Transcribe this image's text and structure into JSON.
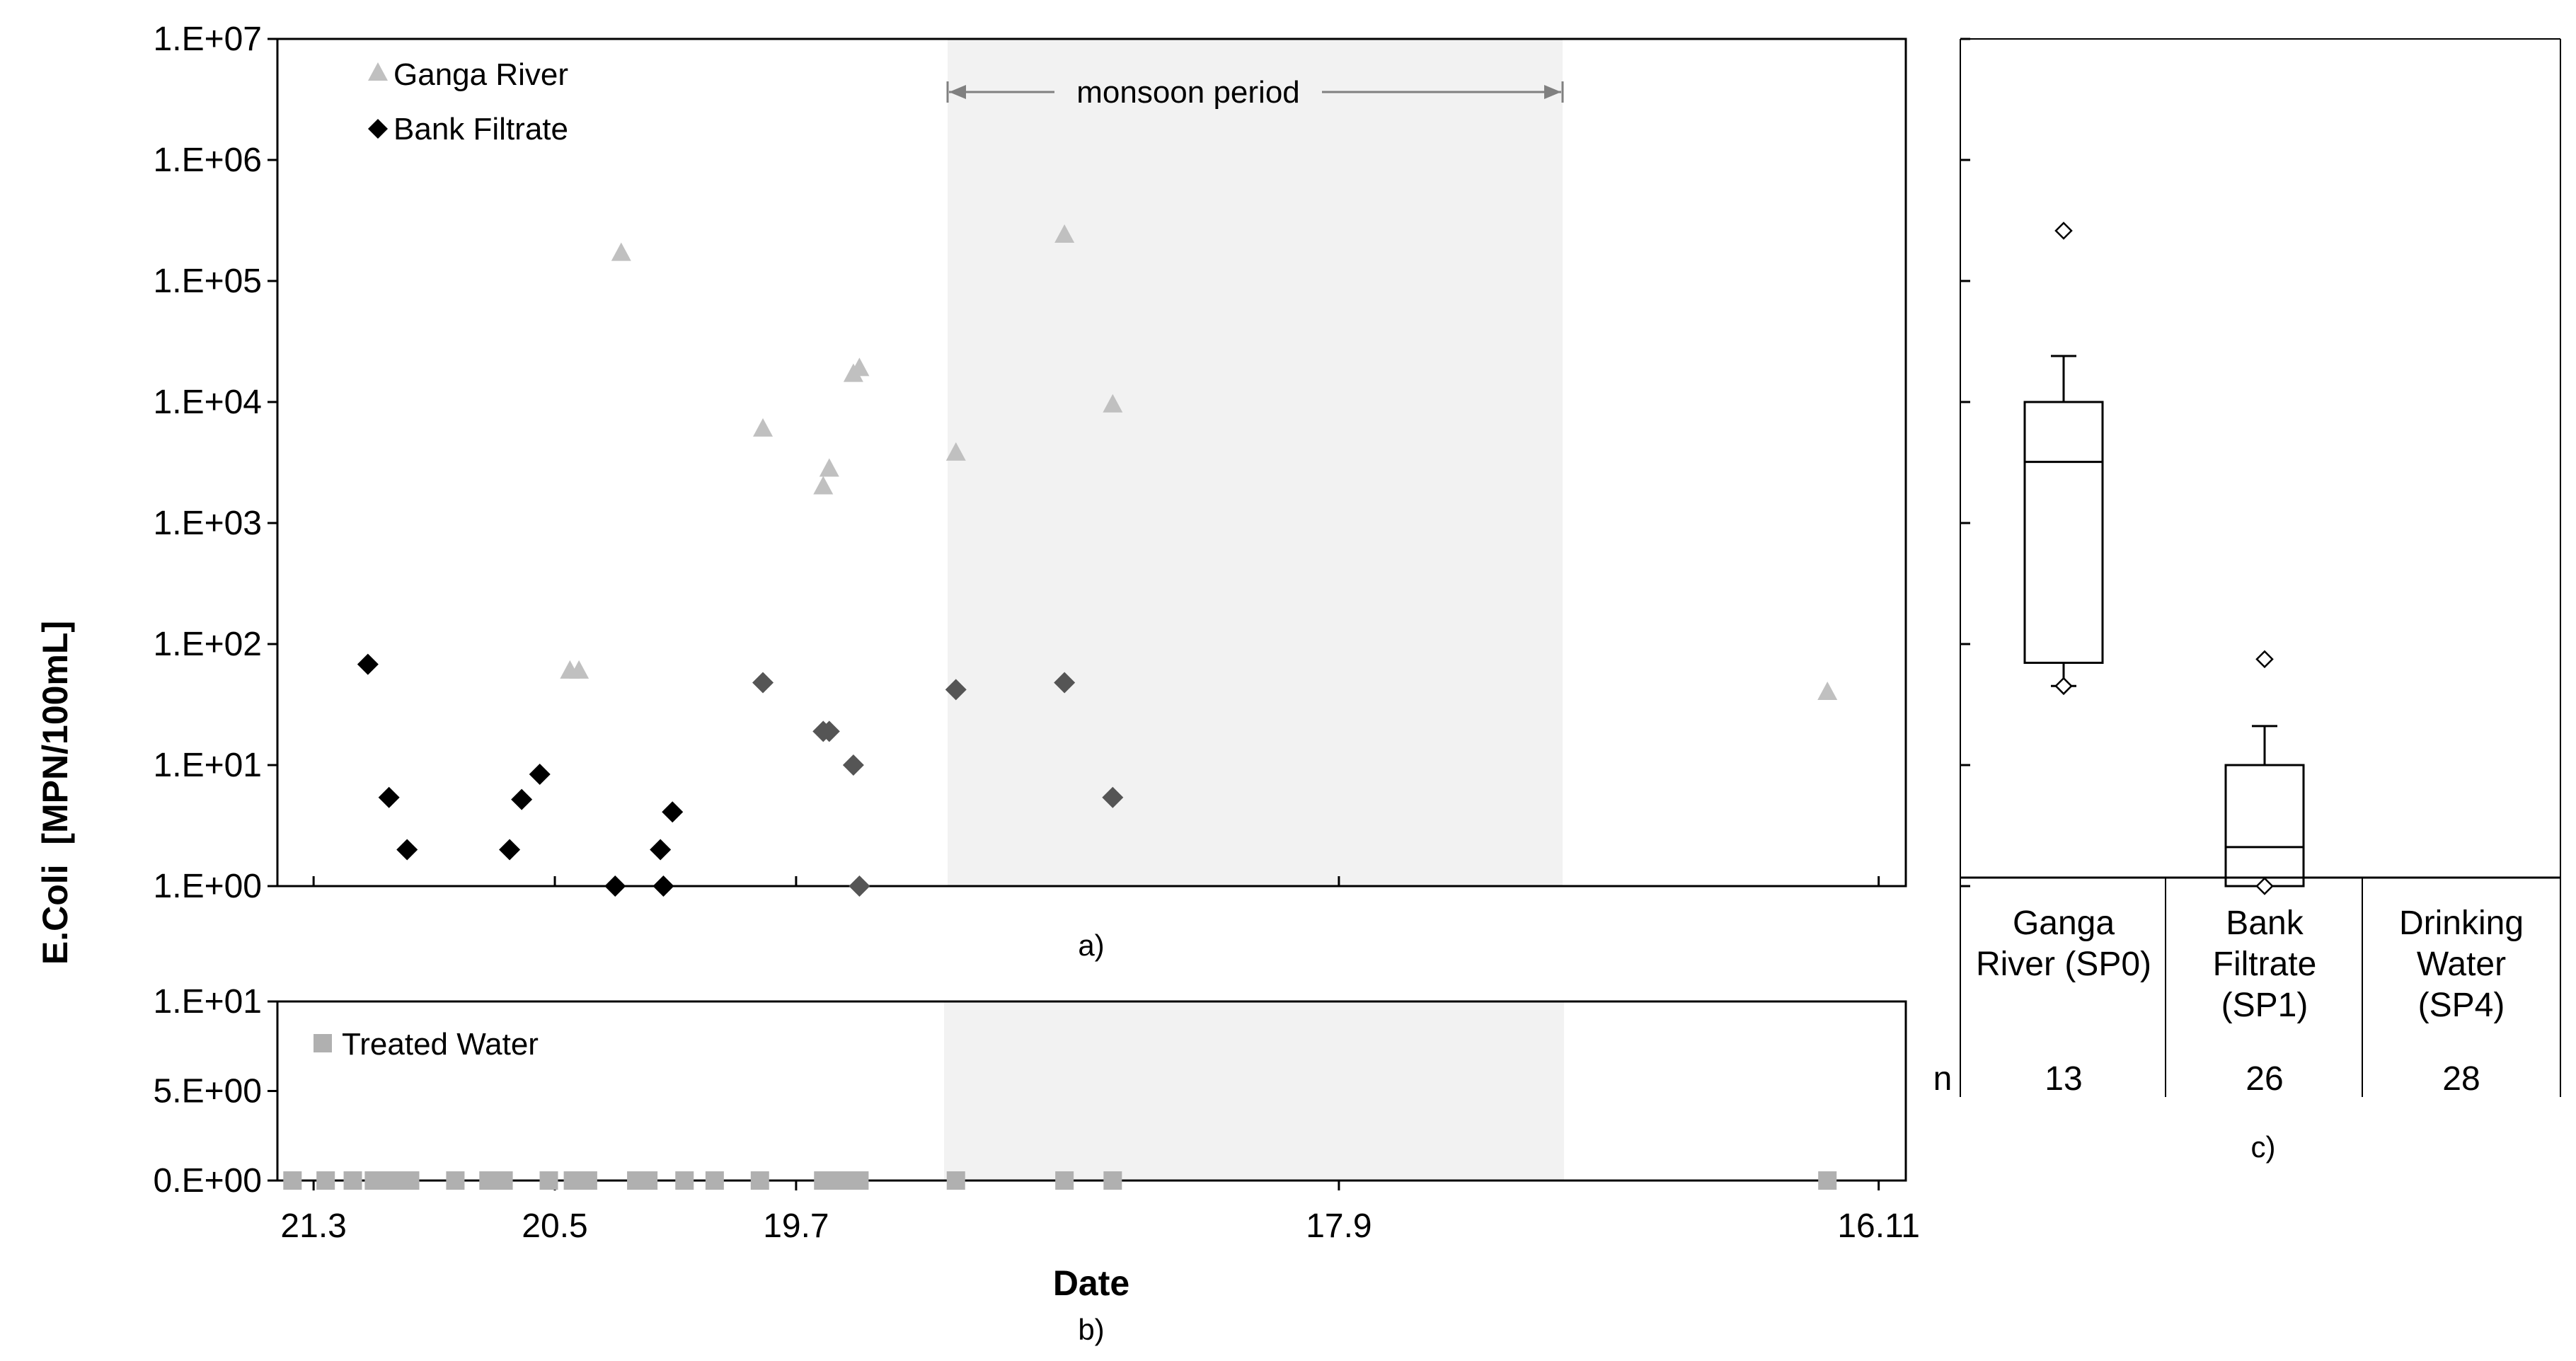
{
  "chart_data": [
    {
      "panel": "a)",
      "type": "scatter",
      "ylabel": "E.Coli  [MPN/100mL]",
      "yscale": "log",
      "ylim": [
        1,
        10000000
      ],
      "xlim": [
        21.42,
        16.02
      ],
      "yticks": [
        "1.E+00",
        "1.E+01",
        "1.E+02",
        "1.E+03",
        "1.E+04",
        "1.E+05",
        "1.E+06",
        "1.E+07"
      ],
      "shaded_period": {
        "label": "monsoon period",
        "x_start": 20.07,
        "x_end": 18.0
      },
      "series": [
        {
          "name": "Ganga River",
          "marker": "triangle",
          "color": "#c0c0c0",
          "points": [
            [
              20.45,
              60
            ],
            [
              20.42,
              60
            ],
            [
              20.28,
              170000
            ],
            [
              19.81,
              6000
            ],
            [
              19.61,
              2000
            ],
            [
              19.59,
              2800
            ],
            [
              19.51,
              17000
            ],
            [
              19.49,
              19000
            ],
            [
              19.17,
              3800
            ],
            [
              18.81,
              240000
            ],
            [
              18.65,
              9500
            ],
            [
              16.28,
              40
            ]
          ]
        },
        {
          "name": "Bank Filtrate",
          "marker": "diamond",
          "color": "#000000",
          "points": [
            [
              21.12,
              68
            ],
            [
              21.05,
              5.4
            ],
            [
              20.99,
              2
            ],
            [
              20.65,
              2
            ],
            [
              20.61,
              5.2
            ],
            [
              20.55,
              8.4
            ],
            [
              20.15,
              2
            ],
            [
              20.11,
              4.1
            ],
            [
              20.3,
              1
            ],
            [
              20.14,
              1
            ],
            [
              19.81,
              48
            ],
            [
              19.61,
              19
            ],
            [
              19.59,
              19
            ],
            [
              19.51,
              10
            ],
            [
              19.49,
              1
            ],
            [
              19.17,
              42
            ],
            [
              18.81,
              48
            ],
            [
              18.65,
              5.4
            ]
          ]
        }
      ]
    },
    {
      "panel": "b)",
      "type": "scatter",
      "xlabel": "Date",
      "ylim": [
        0,
        10
      ],
      "xlim": [
        21.42,
        16.02
      ],
      "yticks": [
        "0.E+00",
        "5.E+00",
        "1.E+01"
      ],
      "xticks": [
        "21.3",
        "20.5",
        "19.7",
        "17.9",
        "16.11"
      ],
      "series": [
        {
          "name": "Treated Water",
          "marker": "square",
          "color": "#b0b0b0",
          "x": [
            21.37,
            21.26,
            21.17,
            21.1,
            21.05,
            21.01,
            20.98,
            20.83,
            20.72,
            20.67,
            20.52,
            20.44,
            20.39,
            20.23,
            20.19,
            20.07,
            19.97,
            19.82,
            19.61,
            19.57,
            19.53,
            19.49,
            19.17,
            18.81,
            18.65,
            16.28
          ],
          "y": [
            0,
            0,
            0,
            0,
            0,
            0,
            0,
            0,
            0,
            0,
            0,
            0,
            0,
            0,
            0,
            0,
            0,
            0,
            0,
            0,
            0,
            0,
            0,
            0,
            0,
            0
          ]
        }
      ]
    },
    {
      "panel": "c)",
      "type": "box",
      "n_label": "n",
      "categories": [
        {
          "label_lines": [
            "Ganga",
            "River (SP0)"
          ],
          "n": "13",
          "whisker_low": 45,
          "q1": 70,
          "median": 3200,
          "q3": 10000,
          "whisker_high": 24000,
          "outliers": [
            260000,
            45
          ]
        },
        {
          "label_lines": [
            "Bank",
            "Filtrate",
            "(SP1)"
          ],
          "n": "26",
          "whisker_low": 1,
          "q1": 1,
          "median": 2.1,
          "q3": 10,
          "whisker_high": 21,
          "outliers": [
            75,
            1
          ]
        },
        {
          "label_lines": [
            "Drinking",
            "Water",
            "(SP4)"
          ],
          "n": "28"
        }
      ]
    }
  ]
}
